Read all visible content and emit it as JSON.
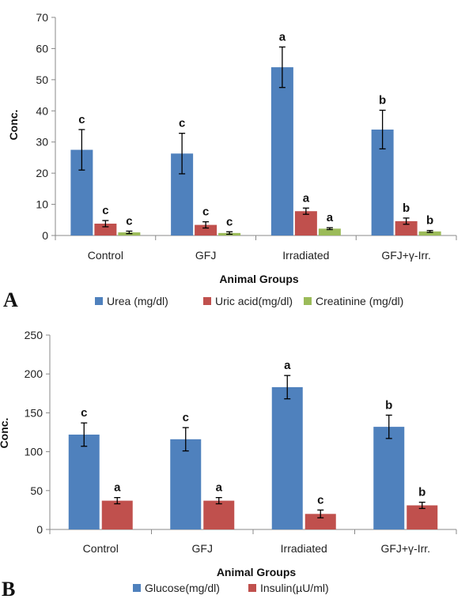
{
  "chart_data": [
    {
      "type": "bar",
      "panel_label": "A",
      "categories": [
        "Control",
        "GFJ",
        "Irradiated",
        "GFJ+γ-Irr."
      ],
      "xlabel": "Animal Groups",
      "ylabel": "Conc.",
      "ylim": [
        0,
        70
      ],
      "yticks": [
        0,
        10,
        20,
        30,
        40,
        50,
        60,
        70
      ],
      "grid": false,
      "legend_position": "bottom",
      "series": [
        {
          "name": "Urea (mg/dl)",
          "color": "#4F81BD",
          "values": [
            27.5,
            26.3,
            54.0,
            34.0
          ],
          "errors": [
            6.5,
            6.5,
            6.5,
            6.2
          ],
          "sig": [
            "c",
            "c",
            "a",
            "b"
          ]
        },
        {
          "name": "Uric acid(mg/dl)",
          "color": "#C0504D",
          "values": [
            3.8,
            3.4,
            7.8,
            4.6
          ],
          "errors": [
            1.0,
            1.0,
            1.0,
            1.0
          ],
          "sig": [
            "c",
            "c",
            "a",
            "b"
          ]
        },
        {
          "name": "Creatinine (mg/dl)",
          "color": "#9BBB59",
          "values": [
            1.0,
            0.8,
            2.2,
            1.3
          ],
          "errors": [
            0.4,
            0.4,
            0.3,
            0.3
          ],
          "sig": [
            "c",
            "c",
            "a",
            "b"
          ]
        }
      ]
    },
    {
      "type": "bar",
      "panel_label": "B",
      "categories": [
        "Control",
        "GFJ",
        "Irradiated",
        "GFJ+γ-Irr."
      ],
      "xlabel": "Animal Groups",
      "ylabel": "Conc.",
      "ylim": [
        0,
        250
      ],
      "yticks": [
        0,
        50,
        100,
        150,
        200,
        250
      ],
      "grid": false,
      "legend_position": "bottom",
      "series": [
        {
          "name": "Glucose(mg/dl)",
          "color": "#4F81BD",
          "values": [
            122,
            116,
            183,
            132
          ],
          "errors": [
            15,
            15,
            15,
            15
          ],
          "sig": [
            "c",
            "c",
            "a",
            "b"
          ]
        },
        {
          "name": "Insulin(µU/ml)",
          "color": "#C0504D",
          "values": [
            37,
            37,
            20,
            31
          ],
          "errors": [
            4,
            4,
            5,
            4
          ],
          "sig": [
            "a",
            "a",
            "c",
            "b"
          ]
        }
      ]
    }
  ]
}
